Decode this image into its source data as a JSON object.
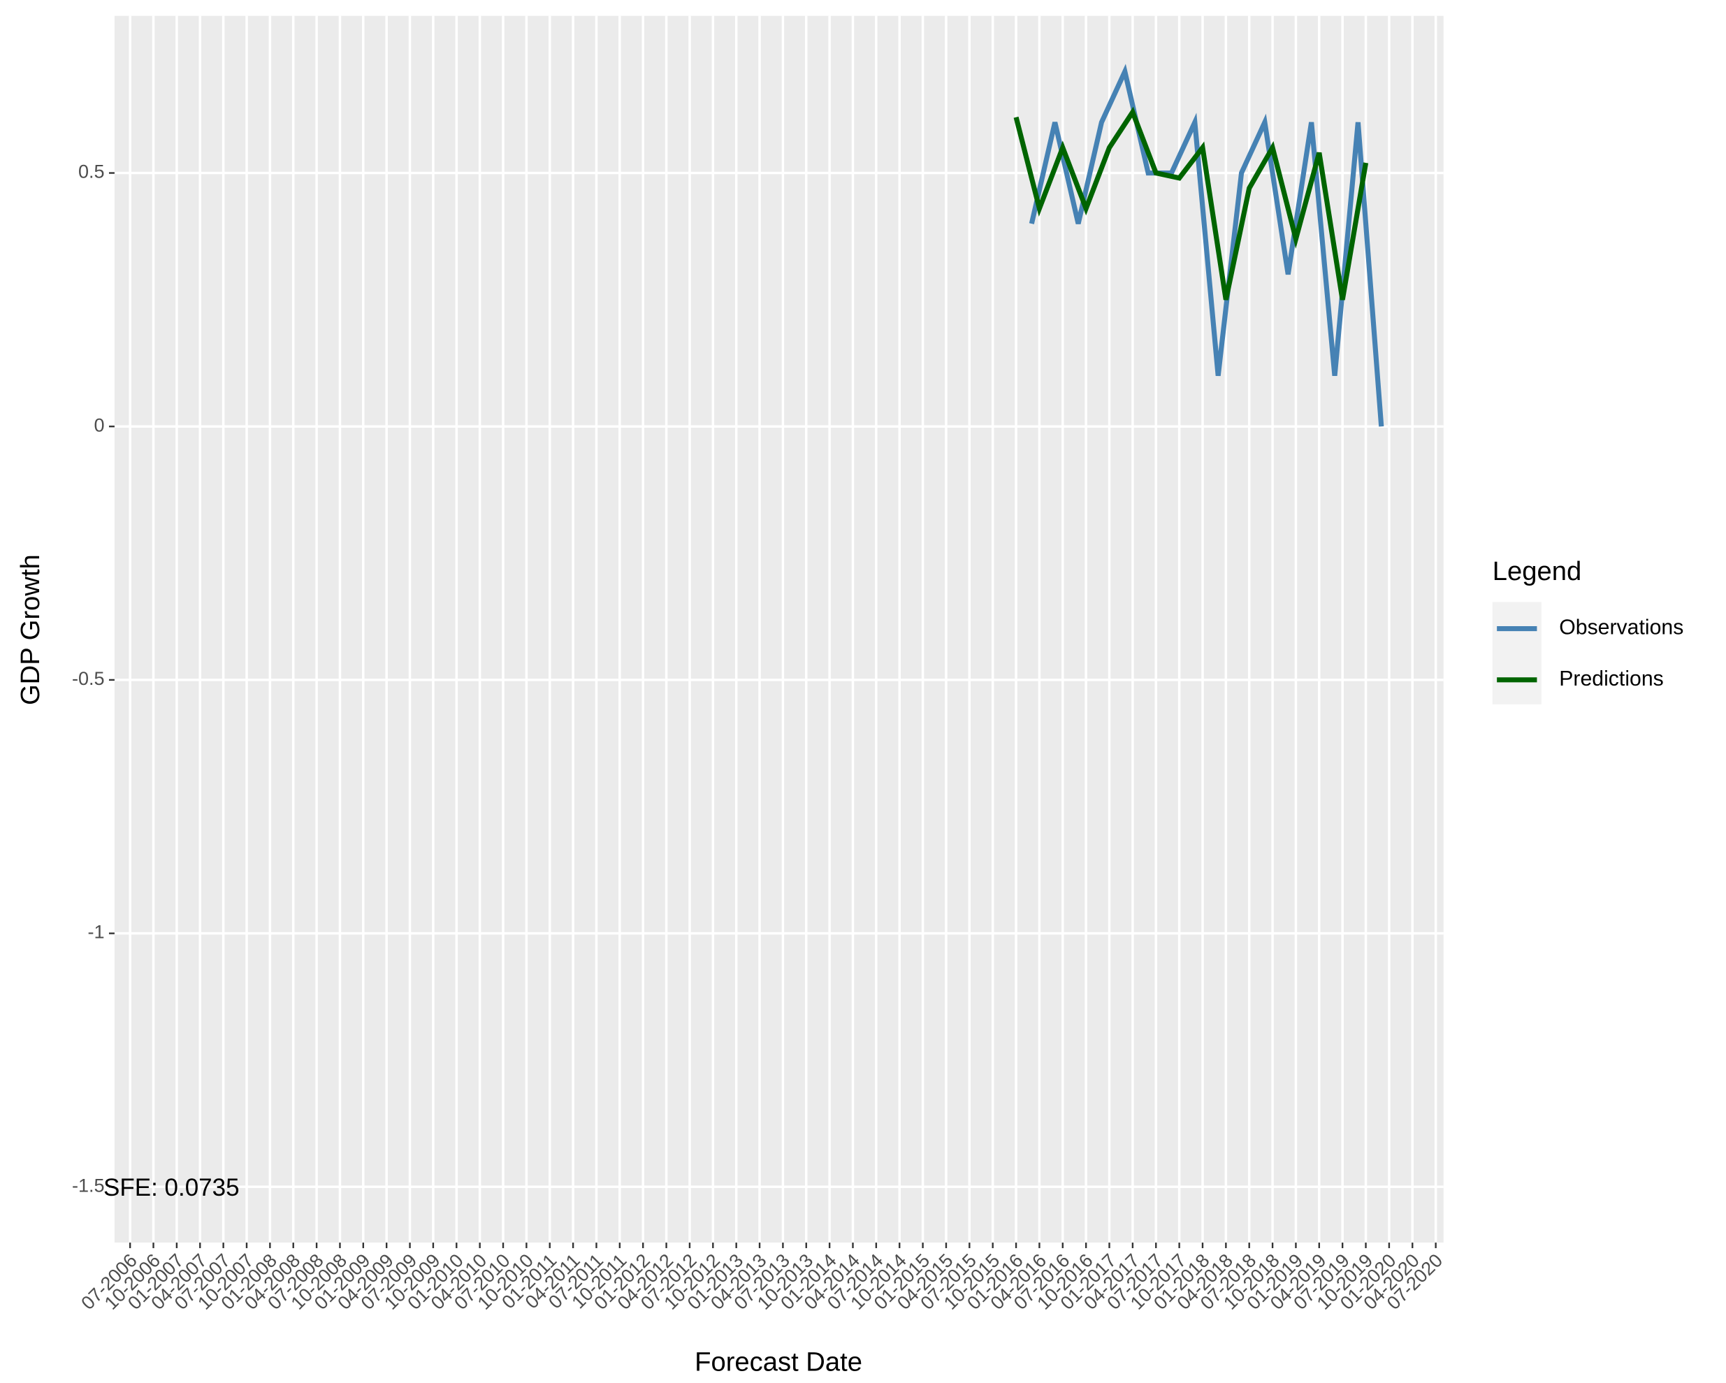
{
  "chart_data": {
    "type": "line",
    "xlabel": "Forecast Date",
    "ylabel": "GDP Growth",
    "annotation": "SFE: 0.0735",
    "legend_title": "Legend",
    "legend_position": "right",
    "grid": true,
    "xlim": [
      "05-2006",
      "08-2020"
    ],
    "xticks": [
      "07-2006",
      "10-2006",
      "01-2007",
      "04-2007",
      "07-2007",
      "10-2007",
      "01-2008",
      "04-2008",
      "07-2008",
      "10-2008",
      "01-2009",
      "04-2009",
      "07-2009",
      "10-2009",
      "01-2010",
      "04-2010",
      "07-2010",
      "10-2010",
      "01-2011",
      "04-2011",
      "07-2011",
      "10-2011",
      "01-2012",
      "04-2012",
      "07-2012",
      "10-2012",
      "01-2013",
      "04-2013",
      "07-2013",
      "10-2013",
      "01-2014",
      "04-2014",
      "07-2014",
      "10-2014",
      "01-2015",
      "04-2015",
      "07-2015",
      "10-2015",
      "01-2016",
      "04-2016",
      "07-2016",
      "10-2016",
      "01-2017",
      "04-2017",
      "07-2017",
      "10-2017",
      "01-2018",
      "04-2018",
      "07-2018",
      "10-2018",
      "01-2019",
      "04-2019",
      "07-2019",
      "10-2019",
      "01-2020",
      "04-2020",
      "07-2020"
    ],
    "ylim": [
      -1.61,
      0.81
    ],
    "yticks": [
      -1.5,
      -1.0,
      -0.5,
      0.0,
      0.5
    ],
    "series": [
      {
        "name": "Observations",
        "color": "#4682b4",
        "x": [
          "03-2016",
          "06-2016",
          "09-2016",
          "12-2016",
          "03-2017",
          "06-2017",
          "09-2017",
          "12-2017",
          "03-2018",
          "06-2018",
          "09-2018",
          "12-2018",
          "03-2019",
          "06-2019",
          "09-2019",
          "12-2019"
        ],
        "values": [
          0.4,
          0.6,
          0.4,
          0.6,
          0.7,
          0.5,
          0.5,
          0.6,
          0.1,
          0.5,
          0.6,
          0.3,
          0.6,
          0.1,
          0.6,
          0.0
        ]
      },
      {
        "name": "Predictions",
        "color": "#006400",
        "x": [
          "01-2016",
          "04-2016",
          "07-2016",
          "10-2016",
          "01-2017",
          "04-2017",
          "07-2017",
          "10-2017",
          "01-2018",
          "04-2018",
          "07-2018",
          "10-2018",
          "01-2019",
          "04-2019",
          "07-2019",
          "10-2019"
        ],
        "values": [
          0.61,
          0.43,
          0.55,
          0.43,
          0.55,
          0.62,
          0.5,
          0.49,
          0.55,
          0.25,
          0.47,
          0.55,
          0.37,
          0.54,
          0.25,
          0.52
        ]
      }
    ]
  }
}
